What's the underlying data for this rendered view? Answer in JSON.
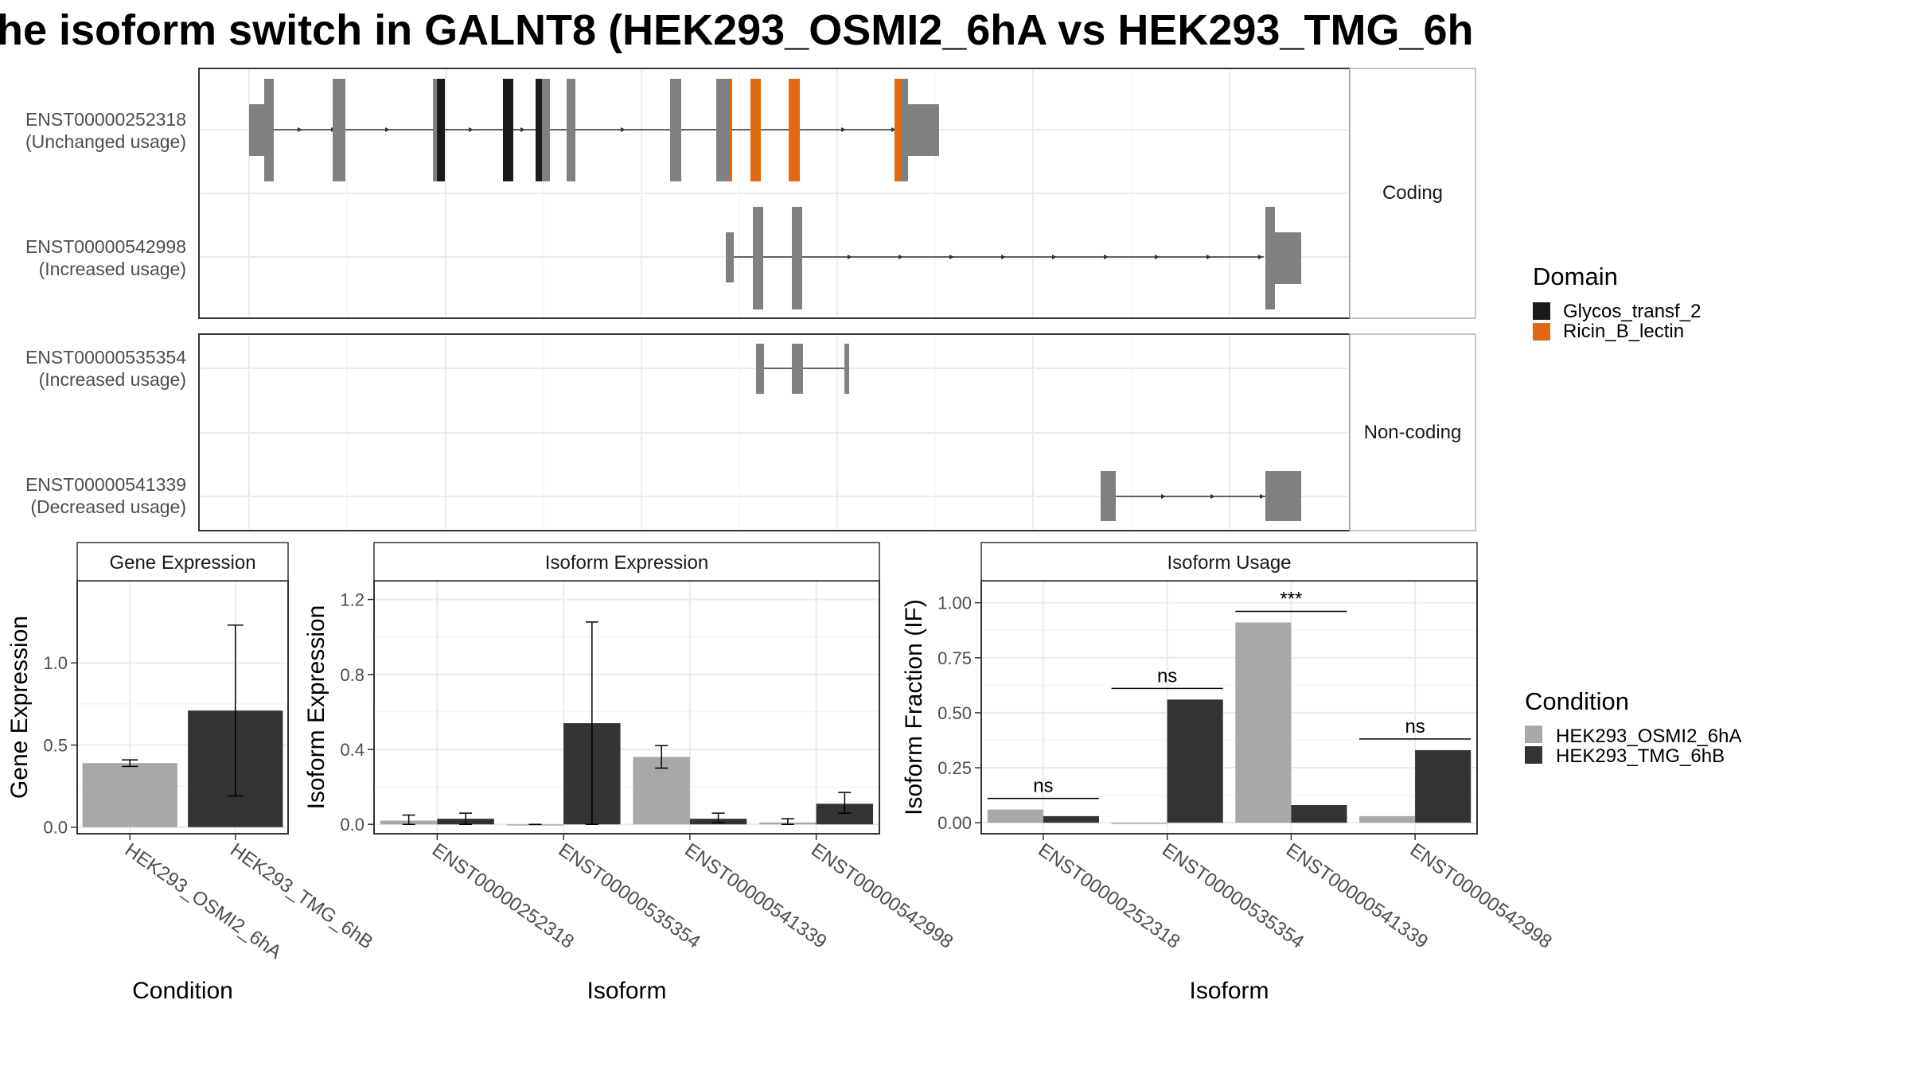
{
  "title": "he isoform switch in GALNT8 (HEK293_OSMI2_6hA vs HEK293_TMG_6h",
  "structure": {
    "facets": [
      {
        "label": "Coding",
        "isoforms": [
          {
            "id": "ENST00000252318",
            "usage": "(Unchanged usage)"
          },
          {
            "id": "ENST00000542998",
            "usage": "(Increased usage)"
          }
        ]
      },
      {
        "label": "Non-coding",
        "isoforms": [
          {
            "id": "ENST00000535354",
            "usage": "(Increased usage)"
          },
          {
            "id": "ENST00000541339",
            "usage": "(Decreased usage)"
          }
        ]
      }
    ],
    "exon_color": "#808080",
    "domain_legend": {
      "title": "Domain",
      "items": [
        {
          "name": "Glycos_transf_2",
          "color": "#1a1a1a"
        },
        {
          "name": "Ricin_B_lectin",
          "color": "#e06911"
        }
      ]
    }
  },
  "condition_legend": {
    "title": "Condition",
    "items": [
      {
        "name": "HEK293_OSMI2_6hA",
        "color": "#a8a8a8"
      },
      {
        "name": "HEK293_TMG_6hB",
        "color": "#333333"
      }
    ]
  },
  "chart_data": [
    {
      "type": "bar",
      "title": "Gene Expression",
      "xlabel": "Condition",
      "ylabel": "Gene Expression",
      "categories": [
        "HEK293_OSMI2_6hA",
        "HEK293_TMG_6hB"
      ],
      "values": [
        0.39,
        0.71
      ],
      "errors": [
        [
          0.37,
          0.41
        ],
        [
          0.19,
          1.23
        ]
      ],
      "colors": [
        "#a8a8a8",
        "#333333"
      ],
      "yticks": [
        0.0,
        0.5,
        1.0
      ],
      "yticklabels": [
        "0.0",
        "0.5",
        "1.0"
      ],
      "ylim": [
        -0.04,
        1.5
      ]
    },
    {
      "type": "bar",
      "title": "Isoform Expression",
      "xlabel": "Isoform",
      "ylabel": "Isoform Expression",
      "categories": [
        "ENST00000252318",
        "ENST00000535354",
        "ENST00000541339",
        "ENST00000542998"
      ],
      "series": [
        {
          "name": "HEK293_OSMI2_6hA",
          "values": [
            0.02,
            0.0,
            0.36,
            0.01
          ],
          "errors": [
            [
              0.0,
              0.05
            ],
            [
              0.0,
              0.0
            ],
            [
              0.3,
              0.42
            ],
            [
              0.0,
              0.03
            ]
          ]
        },
        {
          "name": "HEK293_TMG_6hB",
          "values": [
            0.03,
            0.54,
            0.03,
            0.11
          ],
          "errors": [
            [
              0.0,
              0.06
            ],
            [
              0.0,
              1.08
            ],
            [
              0.01,
              0.06
            ],
            [
              0.06,
              0.17
            ]
          ]
        }
      ],
      "yticks": [
        0.0,
        0.4,
        0.8,
        1.2
      ],
      "yticklabels": [
        "0.0",
        "0.4",
        "0.8",
        "1.2"
      ],
      "ylim": [
        -0.05,
        1.3
      ]
    },
    {
      "type": "bar",
      "title": "Isoform Usage",
      "xlabel": "Isoform",
      "ylabel": "Isoform Fraction (IF)",
      "categories": [
        "ENST00000252318",
        "ENST00000535354",
        "ENST00000541339",
        "ENST00000542998"
      ],
      "series": [
        {
          "name": "HEK293_OSMI2_6hA",
          "values": [
            0.06,
            0.0,
            0.91,
            0.03
          ]
        },
        {
          "name": "HEK293_TMG_6hB",
          "values": [
            0.03,
            0.56,
            0.08,
            0.33
          ]
        }
      ],
      "significance": [
        "ns",
        "ns",
        "***",
        "ns"
      ],
      "yticks": [
        0.0,
        0.25,
        0.5,
        0.75,
        1.0
      ],
      "yticklabels": [
        "0.00",
        "0.25",
        "0.50",
        "0.75",
        "1.00"
      ],
      "ylim": [
        -0.05,
        1.1
      ]
    }
  ]
}
